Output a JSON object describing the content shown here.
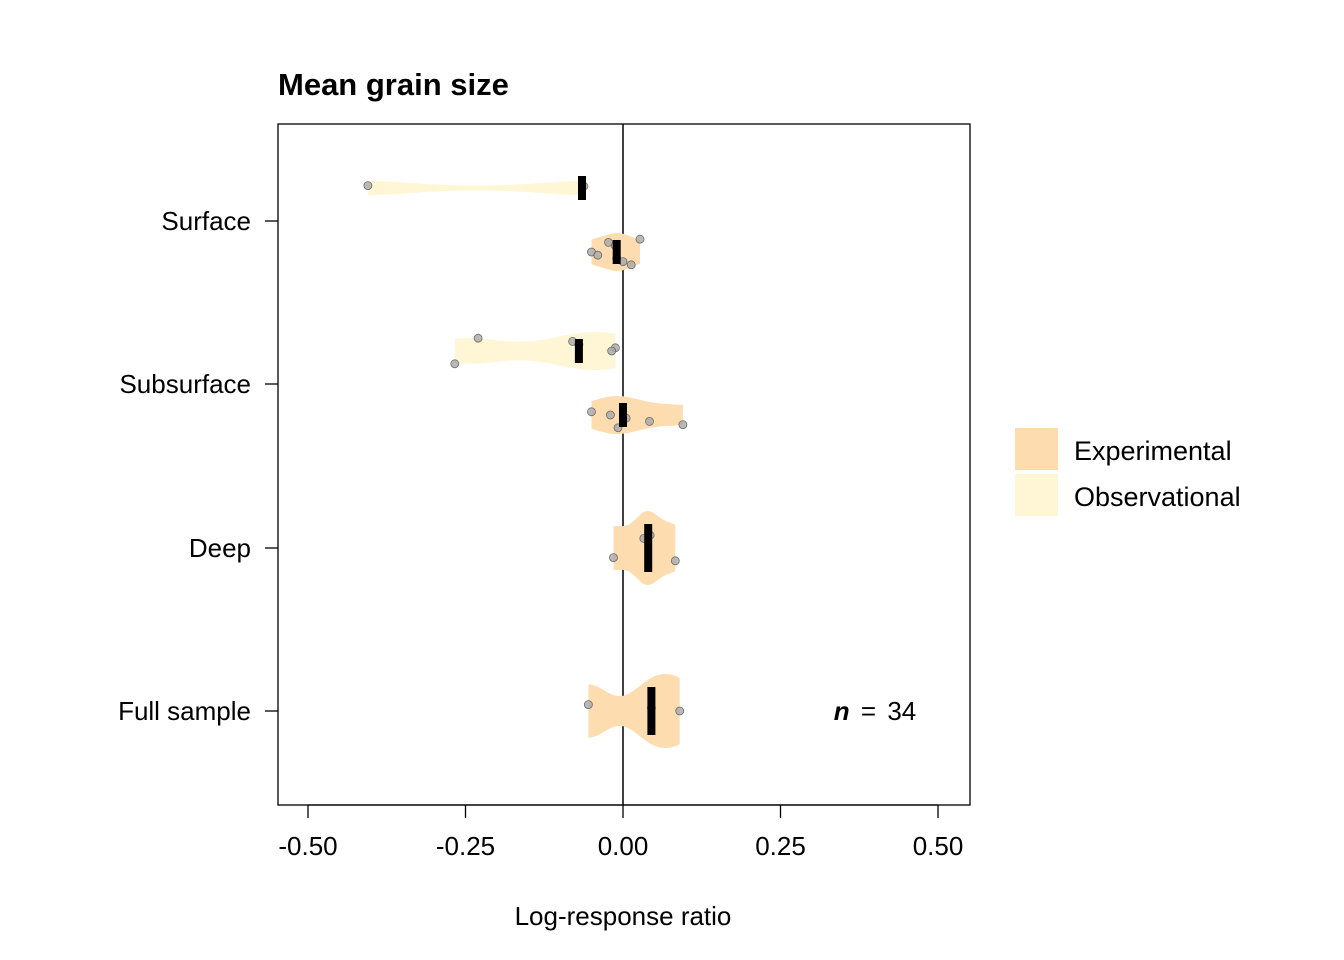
{
  "chart_data": {
    "type": "violin",
    "title": "Mean grain size",
    "xlabel": "Log-response ratio",
    "xlim": [
      -0.5,
      0.5
    ],
    "xticks": [
      "-0.50",
      "-0.25",
      "0.00",
      "0.25",
      "0.50"
    ],
    "reference_line": 0,
    "categories": [
      "Surface",
      "Subsurface",
      "Deep",
      "Full sample"
    ],
    "legend": {
      "position": "right",
      "items": [
        {
          "label": "Experimental",
          "color": "#FDDCB0"
        },
        {
          "label": "Observational",
          "color": "#FFF6D5"
        }
      ]
    },
    "annotation": {
      "n_symbol": "n",
      "equals": "=",
      "n_value": "34"
    },
    "groups": [
      {
        "category": "Surface",
        "series": "Observational",
        "mean": -0.065,
        "points": [
          -0.405,
          -0.062
        ]
      },
      {
        "category": "Surface",
        "series": "Experimental",
        "mean": -0.01,
        "points": [
          -0.05,
          -0.04,
          -0.01,
          0.0,
          0.013,
          0.027,
          -0.023,
          -0.012
        ]
      },
      {
        "category": "Subsurface",
        "series": "Observational",
        "mean": -0.07,
        "points": [
          -0.267,
          -0.23,
          -0.08,
          -0.07,
          -0.012,
          -0.018
        ]
      },
      {
        "category": "Subsurface",
        "series": "Experimental",
        "mean": 0.0,
        "points": [
          -0.05,
          -0.02,
          0.005,
          0.042,
          0.095,
          -0.008
        ]
      },
      {
        "category": "Deep",
        "series": "Experimental",
        "mean": 0.04,
        "points": [
          -0.015,
          0.083,
          0.043,
          0.033
        ]
      },
      {
        "category": "Full sample",
        "series": "Experimental",
        "mean": 0.045,
        "points": [
          -0.055,
          0.045,
          0.09
        ]
      }
    ]
  }
}
